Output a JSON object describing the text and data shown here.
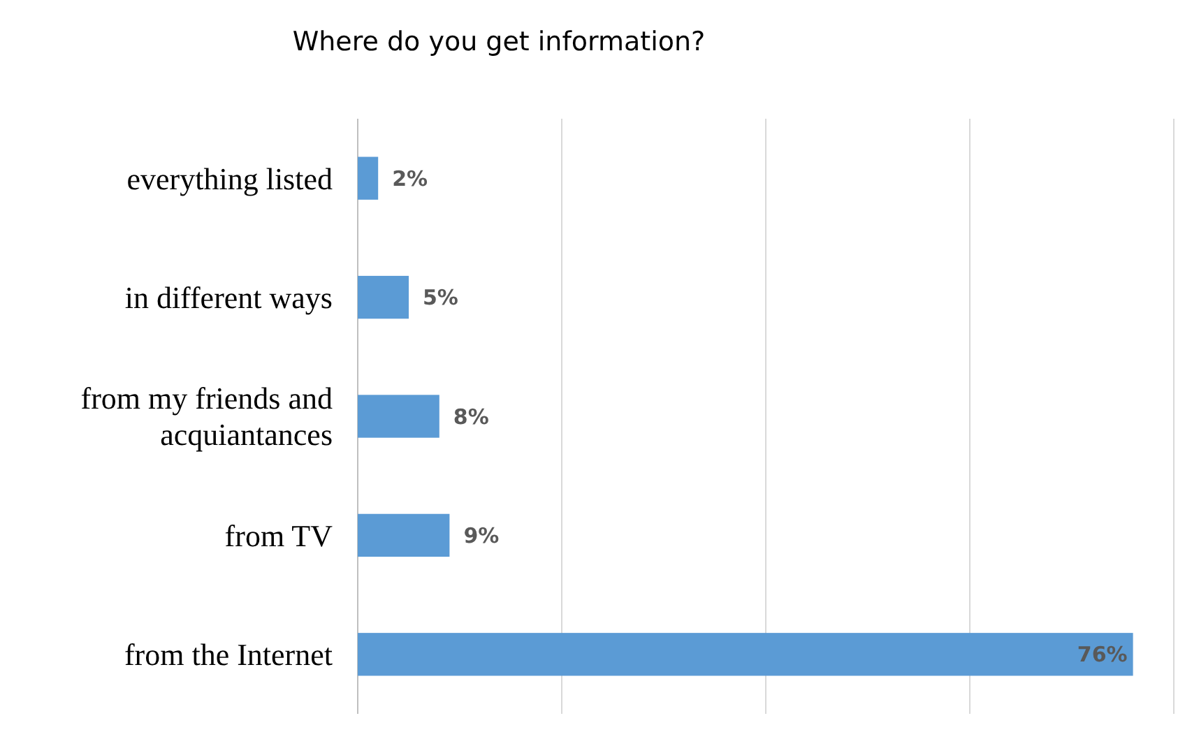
{
  "chart_data": {
    "type": "bar",
    "orientation": "horizontal",
    "title": "Where do you get information?",
    "categories": [
      "everything listed",
      "in different ways",
      "from my friends and acquiantances",
      "from TV",
      "from the Internet"
    ],
    "values": [
      2,
      5,
      8,
      9,
      76
    ],
    "value_labels": [
      "2%",
      "5%",
      "8%",
      "9%",
      "76%"
    ],
    "color": "#5b9bd5",
    "xlim": [
      0,
      80
    ],
    "xticks": [
      {
        "value": 0,
        "label": null
      },
      {
        "value": 20,
        "label": null
      },
      {
        "value": 40,
        "label": null
      },
      {
        "value": 60,
        "label": null
      },
      {
        "value": 80,
        "label": null
      }
    ],
    "tick_labels": "y",
    "grid": "x"
  }
}
